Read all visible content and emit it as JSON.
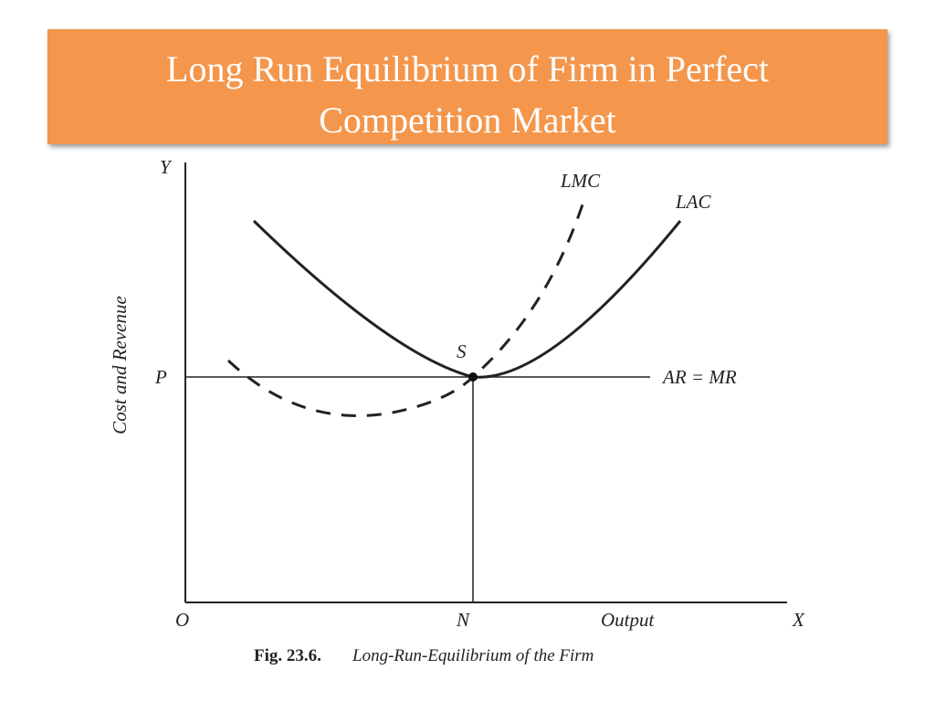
{
  "header": {
    "title_line1": "Long Run Equilibrium of Firm in Perfect",
    "title_line2": "Competition Market"
  },
  "figure": {
    "y_axis": "Y",
    "x_axis": "X",
    "origin": "O",
    "price": "P",
    "quantity": "N",
    "equilibrium": "S",
    "lmc": "LMC",
    "lac": "LAC",
    "ar_mr": "AR = MR",
    "x_label": "Output",
    "y_label": "Cost and Revenue",
    "caption_number": "Fig. 23.6.",
    "caption_text": "Long-Run-Equilibrium of the Firm"
  }
}
